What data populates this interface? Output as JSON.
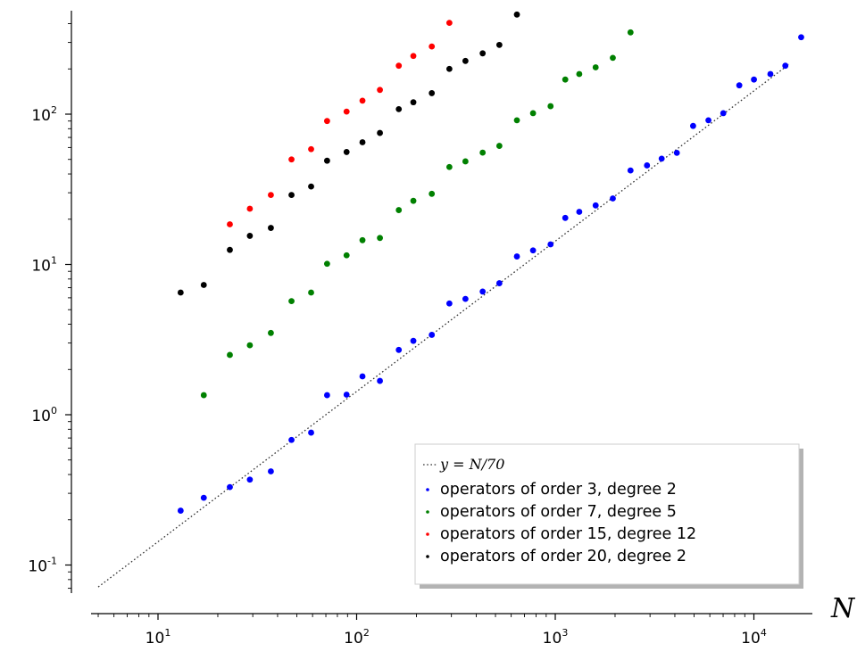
{
  "chart_data": {
    "type": "scatter",
    "title": "",
    "xlabel": "N",
    "ylabel": "",
    "xscale": "log",
    "yscale": "log",
    "xlim": [
      4.5,
      18500
    ],
    "ylim": [
      0.06,
      500
    ],
    "grid": false,
    "legend_position": "bottom-right",
    "x_tick_labels": [
      {
        "base": "10",
        "exp": "1",
        "value": 10
      },
      {
        "base": "10",
        "exp": "2",
        "value": 100
      },
      {
        "base": "10",
        "exp": "3",
        "value": 1000
      },
      {
        "base": "10",
        "exp": "4",
        "value": 10000
      }
    ],
    "y_tick_labels": [
      {
        "base": "10",
        "exp": "-1",
        "value": 0.1
      },
      {
        "base": "10",
        "exp": "0",
        "value": 1
      },
      {
        "base": "10",
        "exp": "1",
        "value": 10
      },
      {
        "base": "10",
        "exp": "2",
        "value": 100
      }
    ],
    "reference_line": {
      "label": "y = N/70",
      "slope_divisor": 70,
      "x_range": [
        5,
        15000
      ],
      "color": "#333333"
    },
    "series": [
      {
        "name": "operators of order 3, degree 2",
        "color": "#0000ff",
        "x": [
          13,
          17,
          23,
          29,
          37,
          47,
          59,
          71,
          89,
          107,
          131,
          163,
          193,
          239,
          293,
          353,
          431,
          523,
          641,
          773,
          947,
          1123,
          1321,
          1597,
          1949,
          2393,
          2897,
          3433,
          4093,
          4943,
          5903,
          7013,
          8443,
          10007,
          12109,
          14401,
          17299
        ],
        "y": [
          0.23,
          0.28,
          0.33,
          0.37,
          0.42,
          0.68,
          0.76,
          1.35,
          1.36,
          1.8,
          1.68,
          2.7,
          3.1,
          3.4,
          5.5,
          5.9,
          6.6,
          7.5,
          11.3,
          12.4,
          13.6,
          20.4,
          22.4,
          24.7,
          27.5,
          42.2,
          45.6,
          50.6,
          55.3,
          83.5,
          91.0,
          101.5,
          155.5,
          170.0,
          185.0,
          210.0,
          325.0
        ]
      },
      {
        "name": "operators of order 7, degree 5",
        "color": "#008000",
        "x": [
          17,
          23,
          29,
          37,
          47,
          59,
          71,
          89,
          107,
          131,
          163,
          193,
          239,
          293,
          353,
          431,
          523,
          641,
          773,
          947,
          1123,
          1321,
          1597,
          1949,
          2393
        ],
        "y": [
          1.35,
          2.5,
          2.9,
          3.5,
          5.7,
          6.5,
          10.1,
          11.5,
          14.5,
          15.0,
          23.0,
          26.5,
          29.5,
          44.5,
          48.5,
          55.5,
          61.5,
          91.0,
          101.5,
          113.0,
          170.0,
          185.0,
          205.0,
          237.0,
          350.0
        ]
      },
      {
        "name": "operators of order 15, degree 12",
        "color": "#ff0000",
        "x": [
          23,
          29,
          37,
          47,
          59,
          71,
          89,
          107,
          131,
          163,
          193,
          239,
          293
        ],
        "y": [
          18.5,
          23.5,
          29.0,
          50.0,
          58.5,
          90.0,
          104.0,
          123.0,
          145.0,
          210.0,
          244.0,
          282.0,
          405.0
        ]
      },
      {
        "name": "operators of order 20, degree 2",
        "color": "#000000",
        "x": [
          13,
          17,
          23,
          29,
          37,
          47,
          59,
          71,
          89,
          107,
          131,
          163,
          193,
          239,
          293,
          353,
          431,
          523,
          641
        ],
        "y": [
          6.5,
          7.3,
          12.5,
          15.5,
          17.5,
          29.0,
          33.0,
          49.0,
          56.0,
          65.0,
          75.0,
          108.0,
          120.0,
          138.0,
          200.0,
          226.0,
          254.0,
          289.0,
          460.0
        ]
      }
    ]
  }
}
